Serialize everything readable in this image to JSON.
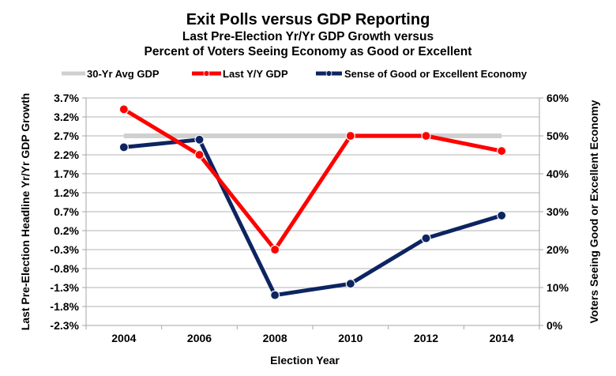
{
  "chart_data": {
    "type": "line",
    "title": "Exit Polls versus GDP Reporting",
    "subtitle_lines": [
      "Last Pre-Election Yr/Yr GDP Growth versus",
      "Percent of Voters Seeing Economy as Good or Excellent"
    ],
    "xlabel": "Election Year",
    "ylabel_left": "Last Pre-Election Headline Yr/Yr GDP Growth",
    "ylabel_right": "Voters Seeing Good or Excellent Economy",
    "categories": [
      "2004",
      "2006",
      "2008",
      "2010",
      "2012",
      "2014"
    ],
    "y_left": {
      "min": -2.3,
      "max": 3.7,
      "step": 0.5,
      "ticks": [
        "3.7%",
        "3.2%",
        "2.7%",
        "2.2%",
        "1.7%",
        "1.2%",
        "0.7%",
        "0.2%",
        "-0.3%",
        "-0.8%",
        "-1.3%",
        "-1.8%",
        "-2.3%"
      ]
    },
    "y_right": {
      "min": 0,
      "max": 60,
      "step": 10,
      "ticks": [
        "60%",
        "50%",
        "40%",
        "30%",
        "20%",
        "10%",
        "0%"
      ]
    },
    "grid": true,
    "legend_position": "top",
    "series": [
      {
        "name": "30-Yr Avg GDP",
        "axis": "left",
        "color": "#d0d0d0",
        "markers": false,
        "values": [
          2.7,
          2.7,
          2.7,
          2.7,
          2.7,
          2.7
        ]
      },
      {
        "name": "Last Y/Y GDP",
        "axis": "left",
        "color": "#ff0000",
        "markers": true,
        "values": [
          3.4,
          2.2,
          -0.3,
          2.7,
          2.7,
          2.3
        ]
      },
      {
        "name": "Sense of Good or Excellent Economy",
        "axis": "right",
        "color": "#0d2461",
        "markers": true,
        "values": [
          47,
          49,
          8,
          11,
          23,
          29
        ]
      }
    ]
  }
}
